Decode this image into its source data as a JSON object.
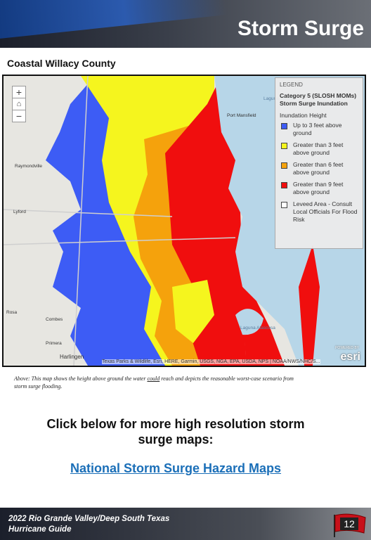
{
  "header": {
    "title": "Storm Surge",
    "subtitle": "Coastal Willacy County"
  },
  "map": {
    "places": [
      "Raymondville",
      "Lyford",
      "Rosa",
      "Combes",
      "Primera",
      "Harlingen",
      "Port Mansfield",
      "Laguna Madre",
      "Laguna Atascosa"
    ],
    "attribution": "Texas Parks & Wildlife, Esri, HERE, Garmin, USGS, NGA, EPA, USDA, NPS | NOAA/NWS/NHC/S...",
    "powered_by": "POWERED BY",
    "logo": "esri",
    "legend": {
      "heading": "LEGEND",
      "layer": "Category 5 (SLOSH MOMs) Storm Surge Inundation",
      "field": "Inundation Height",
      "items": [
        {
          "label": "Up to 3 feet above ground",
          "color": "#3d5cf5"
        },
        {
          "label": "Greater than 3 feet above ground",
          "color": "#f5f51e"
        },
        {
          "label": "Greater than 6 feet above ground",
          "color": "#f5a20c"
        },
        {
          "label": "Greater than 9 feet above ground",
          "color": "#f00e0e"
        },
        {
          "label": "Leveed Area - Consult Local Officials For Flood Risk",
          "color": "#ffffff"
        }
      ]
    }
  },
  "caption": {
    "before": "Above: This map shows the height above ground the water ",
    "emphasis": "could",
    "after": " reach and depicts the reasonable worst-case scenario from storm surge flooding."
  },
  "cta": {
    "text": "Click below for more high resolution storm surge maps:",
    "link": "National Storm Surge Hazard Maps"
  },
  "footer": {
    "guide": "2022 Rio Grande Valley/Deep South Texas Hurricane Guide",
    "page": "12"
  }
}
